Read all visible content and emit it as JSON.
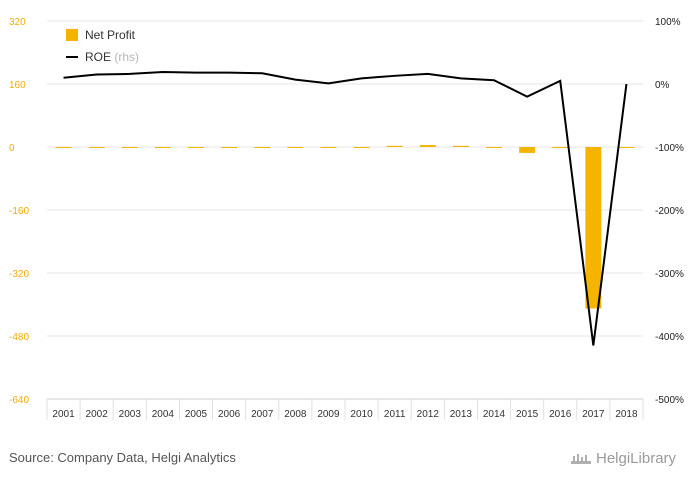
{
  "chart_data": {
    "type": "bar",
    "categories": [
      "2001",
      "2002",
      "2003",
      "2004",
      "2005",
      "2006",
      "2007",
      "2008",
      "2009",
      "2010",
      "2011",
      "2012",
      "2013",
      "2014",
      "2015",
      "2016",
      "2017",
      "2018"
    ],
    "series": [
      {
        "name": "Net Profit",
        "axis": "left",
        "type": "bar",
        "color": "#f5b400",
        "values": [
          0,
          0,
          0,
          0,
          -1,
          -1,
          -1,
          -1,
          0,
          -1,
          3,
          5,
          3,
          1,
          -15,
          -1,
          -410,
          -1
        ]
      },
      {
        "name": "ROE",
        "axis": "right",
        "type": "line",
        "color": "#000000",
        "values": [
          10,
          15,
          16,
          19,
          18,
          18,
          17,
          7,
          1,
          9,
          13,
          16,
          9,
          6,
          -20,
          5,
          -415,
          0
        ]
      }
    ],
    "left_axis": {
      "ticks": [
        "320",
        "160",
        "0",
        "-160",
        "-320",
        "-480",
        "-640"
      ],
      "range": [
        -640,
        320
      ]
    },
    "right_axis": {
      "ticks": [
        "100%",
        "0%",
        "-100%",
        "-200%",
        "-300%",
        "-400%",
        "-500%"
      ],
      "range": [
        -500,
        100
      ]
    },
    "legend": {
      "position": "top-left",
      "items": [
        {
          "label": "Net Profit",
          "suffix": ""
        },
        {
          "label": "ROE",
          "suffix": "(rhs)"
        }
      ]
    },
    "grid": true
  },
  "footer": {
    "source": "Source: Company Data, Helgi Analytics",
    "brand": "HelgiLibrary"
  }
}
